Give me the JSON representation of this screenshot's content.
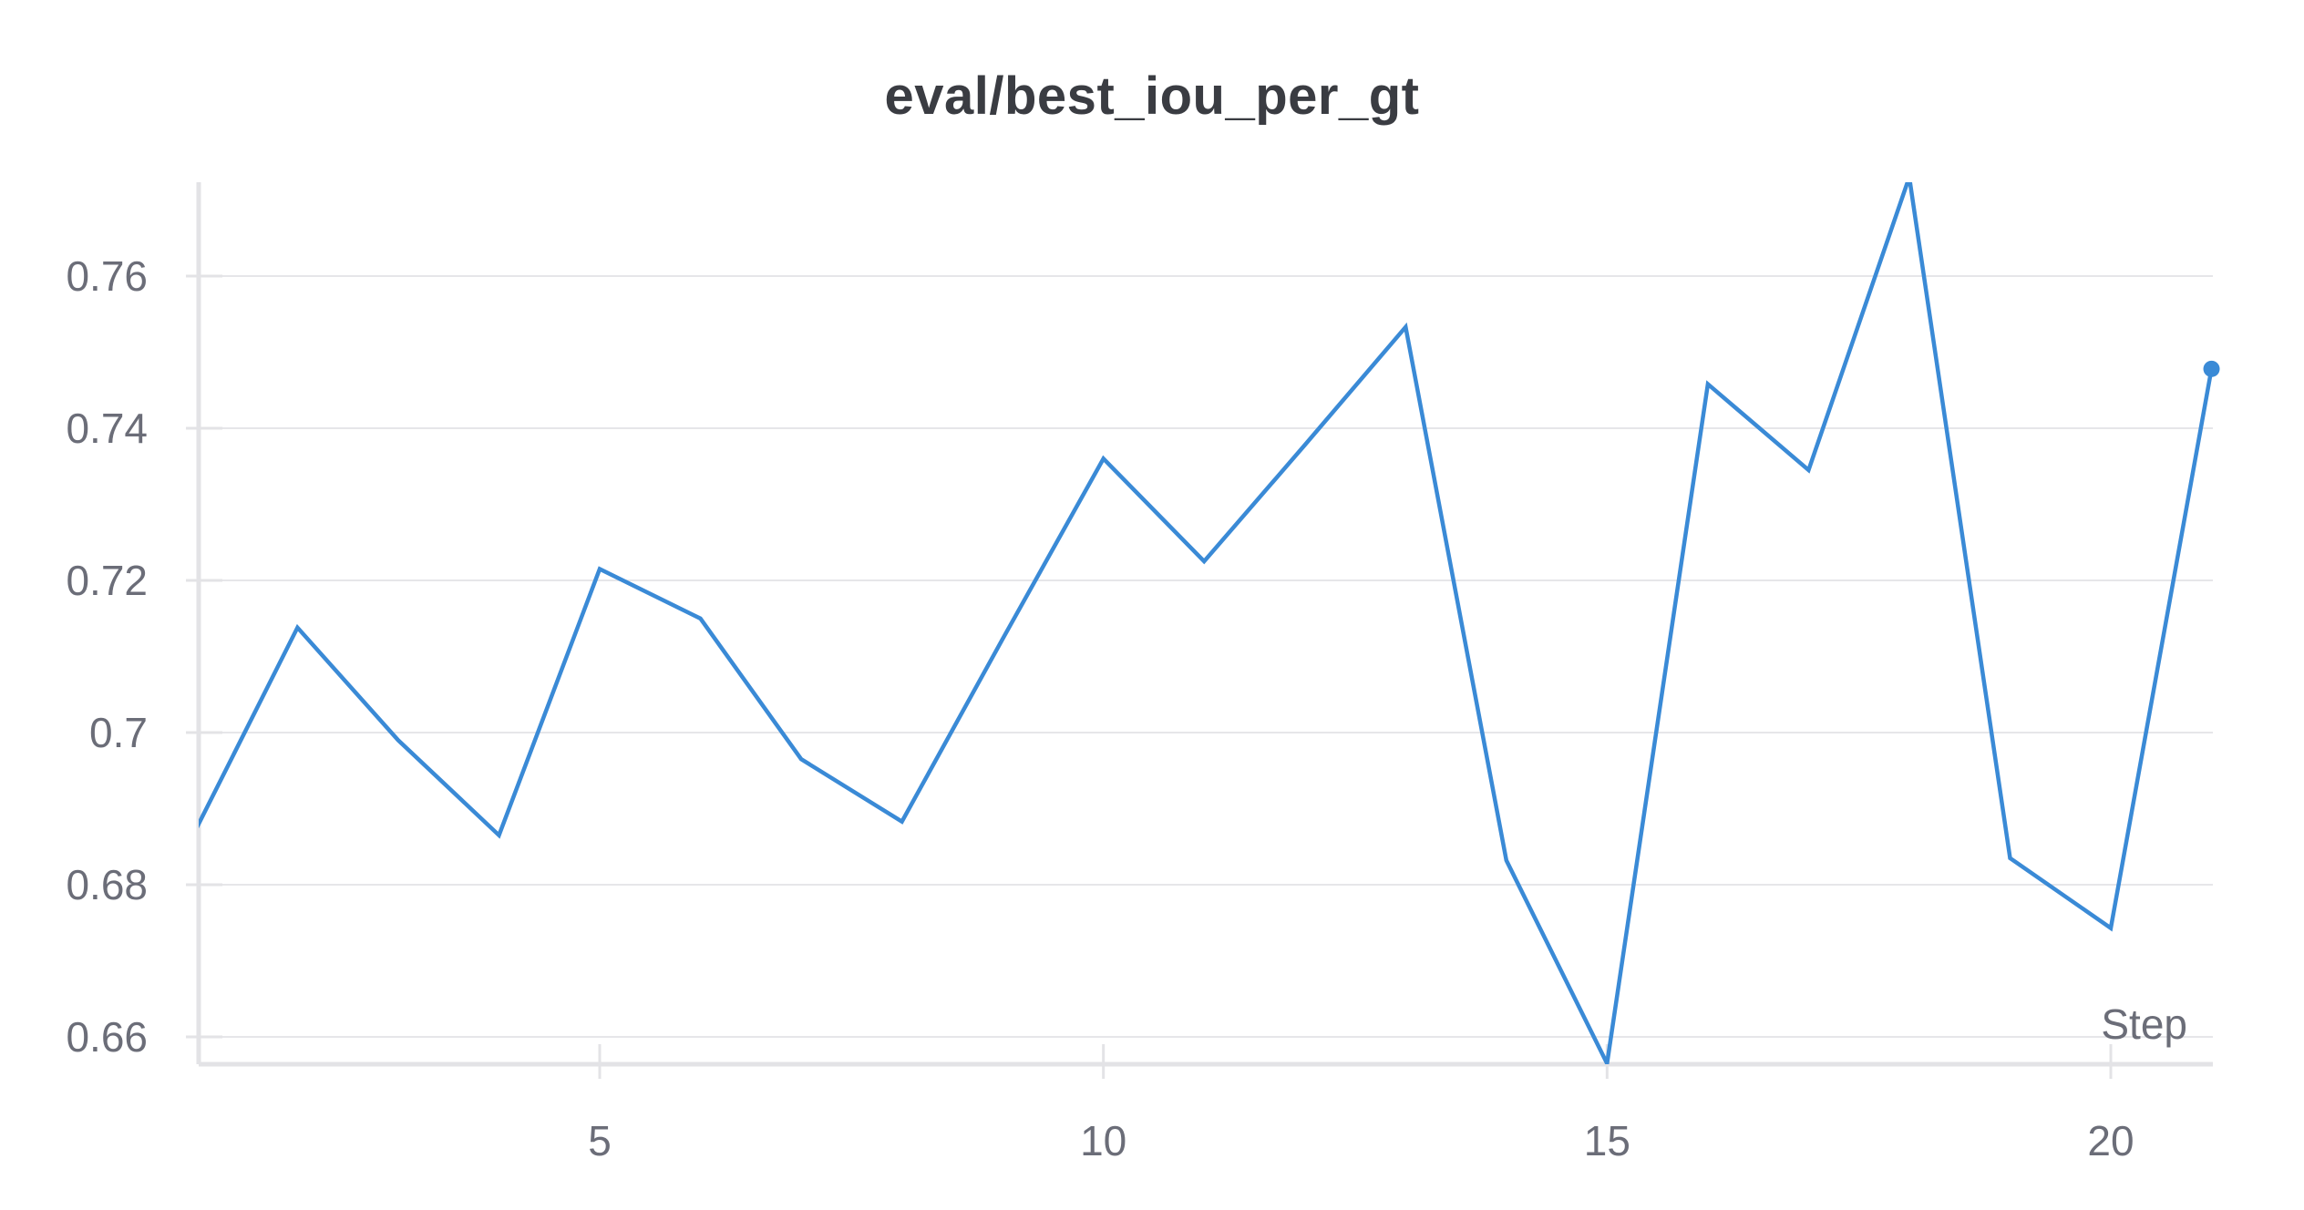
{
  "chart_data": {
    "type": "line",
    "title": "eval/best_iou_per_gt",
    "xlabel": "Step",
    "ylabel": "",
    "xlim": [
      1,
      21
    ],
    "ylim": [
      0.656,
      0.772
    ],
    "x_ticks": [
      5,
      10,
      15,
      20
    ],
    "y_ticks": [
      0.66,
      0.68,
      0.7,
      0.72,
      0.74,
      0.76
    ],
    "y_tick_labels": [
      "0.66",
      "0.68",
      "0.7",
      "0.72",
      "0.74",
      "0.76"
    ],
    "grid": true,
    "series": [
      {
        "color": "#3a8ad6",
        "x": [
          1,
          2,
          3,
          4,
          5,
          6,
          7,
          8,
          9,
          10,
          11,
          12,
          13,
          14,
          15,
          16,
          17,
          18,
          19,
          20,
          21
        ],
        "values": [
          0.6875,
          0.7138,
          0.699,
          0.6865,
          0.7215,
          0.715,
          0.6965,
          0.6883,
          0.7123,
          0.736,
          0.7225,
          0.7378,
          0.7533,
          0.6832,
          0.6565,
          0.7458,
          0.7345,
          0.773,
          0.6835,
          0.6743,
          0.7478
        ]
      }
    ]
  }
}
